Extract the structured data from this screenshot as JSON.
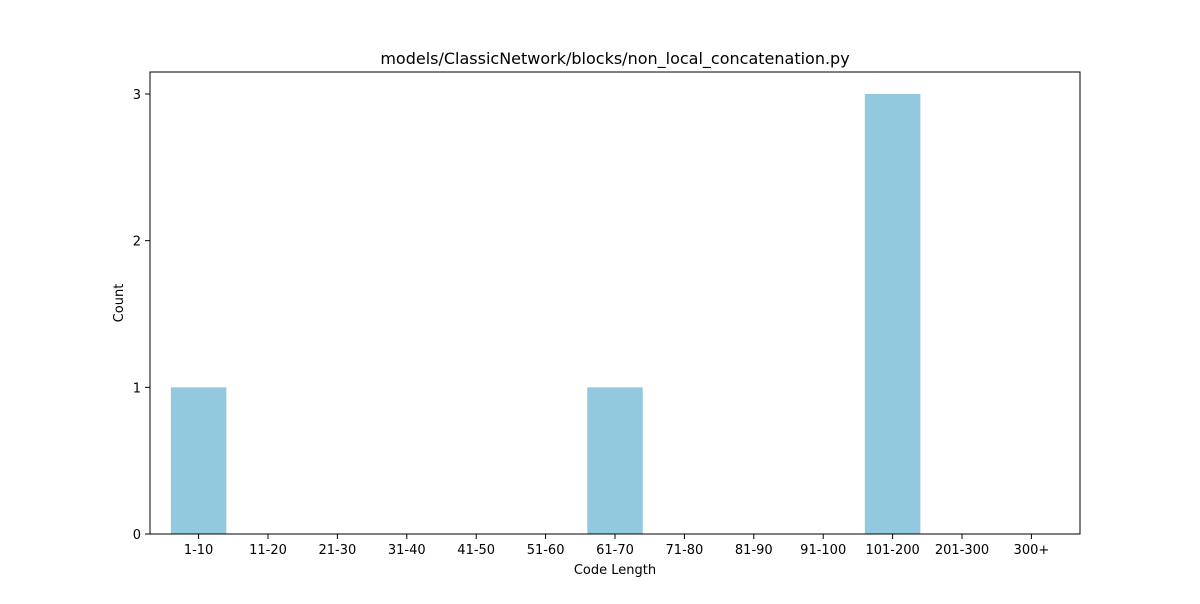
{
  "chart_data": {
    "type": "bar",
    "title": "models/ClassicNetwork/blocks/non_local_concatenation.py",
    "xlabel": "Code Length",
    "ylabel": "Count",
    "categories": [
      "1-10",
      "11-20",
      "21-30",
      "31-40",
      "41-50",
      "51-60",
      "61-70",
      "71-80",
      "81-90",
      "91-100",
      "101-200",
      "201-300",
      "300+"
    ],
    "values": [
      1,
      0,
      0,
      0,
      0,
      0,
      1,
      0,
      0,
      0,
      3,
      0,
      0
    ],
    "ylim": [
      0,
      3.15
    ],
    "yticks": [
      0,
      1,
      2,
      3
    ],
    "grid": false,
    "bar_color": "#92c9de"
  }
}
